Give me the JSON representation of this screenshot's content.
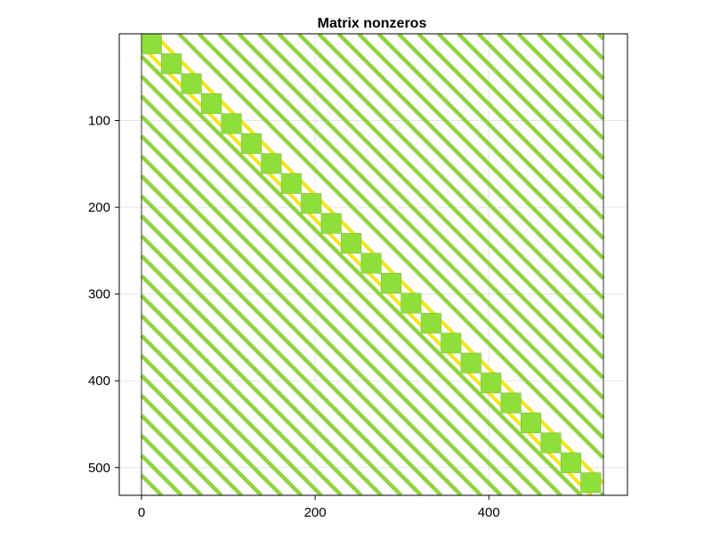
{
  "chart_data": {
    "type": "heatmap",
    "subtype": "sparsity-pattern",
    "title": "Matrix nonzeros",
    "xlabel": "",
    "ylabel": "",
    "xlim": [
      0,
      532
    ],
    "ylim": [
      532,
      0
    ],
    "y_axis_inverted": true,
    "grid": true,
    "legend": "none",
    "matrix_size": 532,
    "diagonal_block_size": 23,
    "off_diagonal_period": 23,
    "x_ticks": [
      0,
      200,
      400
    ],
    "x_tick_labels": [
      "0",
      "200",
      "400"
    ],
    "y_ticks": [
      100,
      200,
      300,
      400,
      500
    ],
    "y_tick_labels": [
      "100",
      "200",
      "300",
      "400",
      "500"
    ],
    "colors": {
      "nonzero": "#8fd43e",
      "block": "#8fdf3b",
      "band": "#f4e41a",
      "grid": "#e5e5e5",
      "axis": "#000000"
    }
  }
}
